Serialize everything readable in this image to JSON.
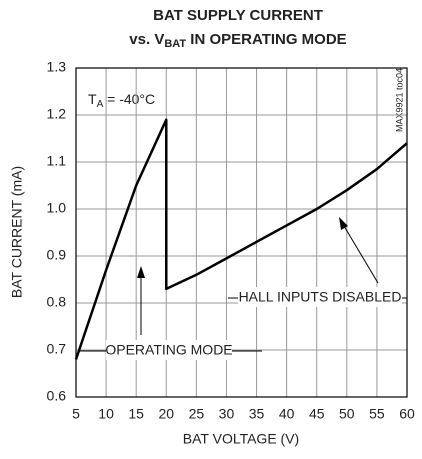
{
  "chart_data": {
    "type": "line",
    "title": {
      "line1": "BAT SUPPLY CURRENT",
      "line2": {
        "prefix": "vs. V",
        "subscript": "BAT",
        "suffix": " IN OPERATING MODE"
      }
    },
    "x_label": "BAT VOLTAGE (V)",
    "y_label": "BAT CURRENT (mA)",
    "condition": {
      "prefix": "T",
      "subscript": "A",
      "suffix": " = -40°C"
    },
    "figure_id": "MAX9921 toc04",
    "annotations": [
      "OPERATING MODE",
      "HALL INPUTS DISABLED"
    ],
    "series": [
      {
        "name": "BAT current",
        "color": "#000000",
        "x": [
          5,
          10,
          15,
          20,
          20,
          25,
          30,
          35,
          40,
          45,
          50,
          55,
          60
        ],
        "values": [
          0.68,
          0.87,
          1.05,
          1.19,
          0.83,
          0.86,
          0.895,
          0.93,
          0.965,
          1.0,
          1.04,
          1.085,
          1.14
        ]
      }
    ],
    "xlim": [
      5,
      60
    ],
    "xticks": [
      5,
      10,
      15,
      20,
      25,
      30,
      35,
      40,
      45,
      50,
      55,
      60
    ],
    "ylim": [
      0.6,
      1.3
    ],
    "yticks": [
      0.6,
      0.7,
      0.8,
      0.9,
      {
        "value": 1,
        "label": "1.0"
      },
      1.1,
      1.2,
      1.3
    ],
    "grid": true
  }
}
